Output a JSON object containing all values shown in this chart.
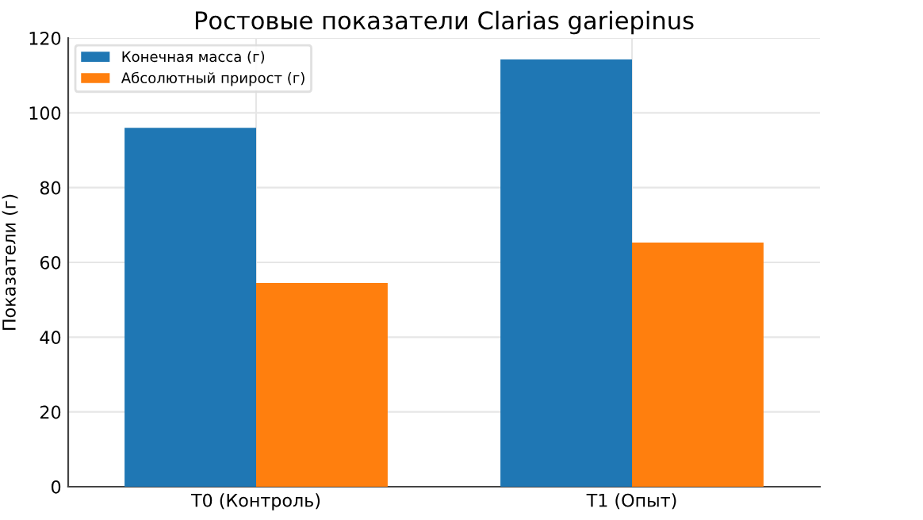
{
  "chart_data": {
    "type": "bar",
    "title": "Ростовые показатели Clarias gariepinus",
    "ylabel": "Показатели (г)",
    "categories": [
      "T0 (Контроль)",
      "T1 (Опыт)"
    ],
    "series": [
      {
        "name": "Конечная масса (г)",
        "color": "#1f77b4",
        "values": [
          96,
          114.3
        ]
      },
      {
        "name": "Абсолютный прирост (г)",
        "color": "#ff7f0e",
        "values": [
          54.5,
          65.3
        ]
      }
    ],
    "ylim": [
      0,
      120
    ],
    "yticks": [
      0,
      20,
      40,
      60,
      80,
      100,
      120
    ],
    "grid": true,
    "legend": "top left"
  }
}
